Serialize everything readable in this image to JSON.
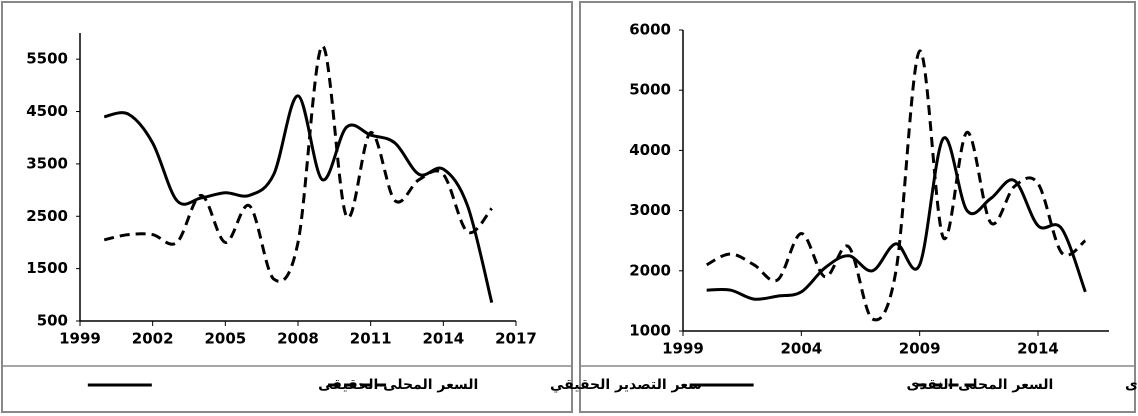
{
  "chart_data": [
    {
      "type": "line",
      "x": [
        2000,
        2001,
        2002,
        2003,
        2004,
        2005,
        2006,
        2007,
        2008,
        2009,
        2010,
        2011,
        2012,
        2013,
        2014,
        2015,
        2016
      ],
      "xlim": [
        1999,
        2017
      ],
      "xticks": [
        1999,
        2002,
        2005,
        2008,
        2011,
        2014,
        2017
      ],
      "ylim": [
        500,
        6000
      ],
      "yticks": [
        500,
        1500,
        2500,
        3500,
        4500,
        5500
      ],
      "series": [
        {
          "name": "سعر التصدير الحقيقي",
          "color": "#000000",
          "dash": true,
          "values": [
            2050,
            2150,
            2150,
            2000,
            2900,
            2000,
            2700,
            1300,
            2000,
            5750,
            2500,
            4100,
            2800,
            3200,
            3300,
            2200,
            2650
          ]
        },
        {
          "name": "السعر المحلى الحقيقى",
          "color": "#000000",
          "dash": false,
          "values": [
            4400,
            4450,
            3900,
            2800,
            2850,
            2950,
            2900,
            3300,
            4800,
            3200,
            4200,
            4050,
            3900,
            3300,
            3400,
            2700,
            850
          ]
        }
      ]
    },
    {
      "type": "line",
      "x": [
        2000,
        2001,
        2002,
        2003,
        2004,
        2005,
        2006,
        2007,
        2008,
        2009,
        2010,
        2011,
        2012,
        2013,
        2014,
        2015,
        2016
      ],
      "xlim": [
        1999,
        2017
      ],
      "xticks": [
        1999,
        2004,
        2009,
        2014
      ],
      "ylim": [
        1000,
        6000
      ],
      "yticks": [
        1000,
        2000,
        3000,
        4000,
        5000,
        6000
      ],
      "series": [
        {
          "name": "سعر التصدير النقدى",
          "color": "#000000",
          "dash": true,
          "values": [
            2100,
            2280,
            2100,
            1850,
            2620,
            1900,
            2400,
            1200,
            2000,
            5650,
            2550,
            4300,
            2800,
            3400,
            3450,
            2300,
            2500
          ]
        },
        {
          "name": "السعر المحلى النقدى",
          "color": "#000000",
          "dash": false,
          "values": [
            1680,
            1680,
            1530,
            1580,
            1650,
            2050,
            2250,
            2000,
            2450,
            2100,
            4200,
            3000,
            3200,
            3500,
            2750,
            2700,
            1650
          ]
        }
      ]
    }
  ]
}
